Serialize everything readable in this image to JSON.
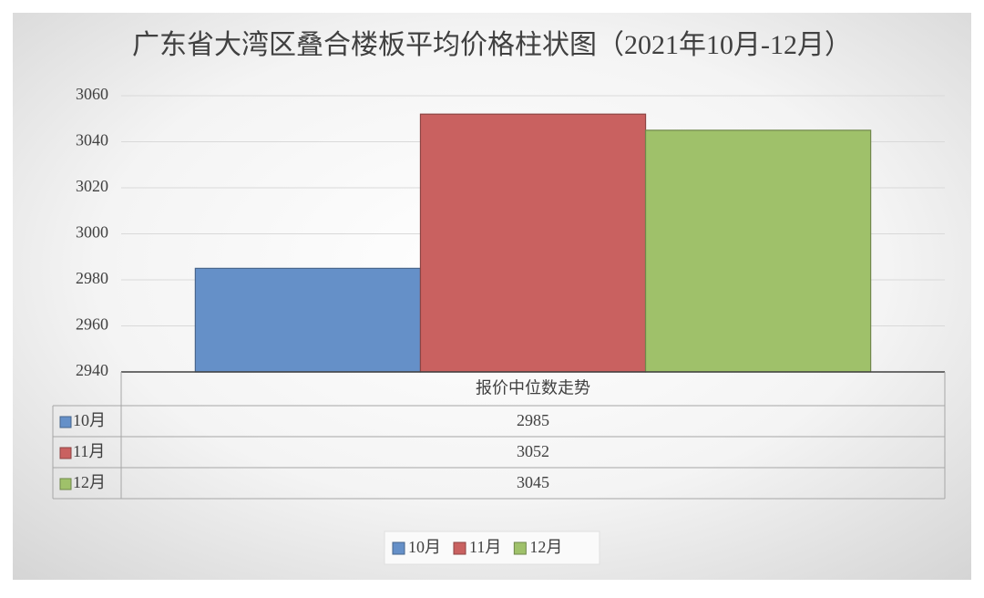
{
  "chart_data": {
    "type": "bar",
    "title": "广东省大湾区叠合楼板平均价格柱状图（2021年10月-12月）",
    "categories": [
      "报价中位数走势"
    ],
    "series": [
      {
        "name": "10月",
        "color": "#6590c8",
        "values": [
          2985
        ]
      },
      {
        "name": "11月",
        "color": "#c96160",
        "values": [
          3052
        ]
      },
      {
        "name": "12月",
        "color": "#9fc16a",
        "values": [
          3045
        ]
      }
    ],
    "ylim": [
      2940,
      3060
    ],
    "yticks": [
      2940,
      2960,
      2980,
      3000,
      3020,
      3040,
      3060
    ],
    "grid": true,
    "data_table": true,
    "legend": "bottom"
  }
}
